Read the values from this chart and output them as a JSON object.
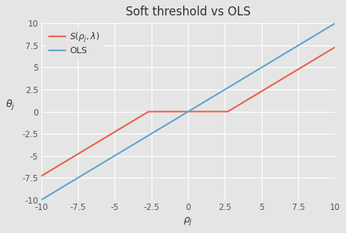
{
  "title": "Soft threshold vs OLS",
  "xlabel": "$\\rho_j$",
  "ylabel": "$\\theta_j$",
  "xlim": [
    -10,
    10
  ],
  "ylim": [
    -10,
    10
  ],
  "xticks": [
    -10.0,
    -7.5,
    -5.0,
    -2.5,
    0.0,
    2.5,
    5.0,
    7.5,
    10.0
  ],
  "yticks": [
    -10.0,
    -7.5,
    -5.0,
    -2.5,
    0.0,
    2.5,
    5.0,
    7.5,
    10.0
  ],
  "lambda": 2.7,
  "ols_color": "#5ba4cf",
  "soft_color": "#e8604c",
  "ols_label": "OLS",
  "soft_label": "$S(\\rho_j, \\lambda)$",
  "line_width": 1.6,
  "bg_color": "#e5e5e5",
  "plot_bg_color": "#e5e5e5",
  "grid_color": "#ffffff",
  "figsize": [
    4.93,
    3.33
  ],
  "dpi": 100,
  "title_fontsize": 12,
  "label_fontsize": 10,
  "tick_fontsize": 8.5,
  "legend_fontsize": 9
}
